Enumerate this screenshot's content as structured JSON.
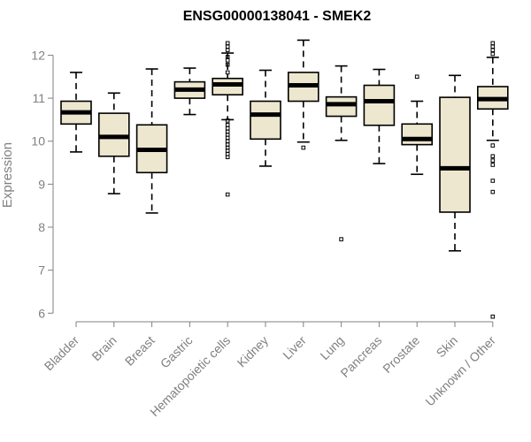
{
  "colors": {
    "box_fill": "#ede7cf",
    "stroke": "#000000",
    "axis": "#808080",
    "text": "#808080",
    "title": "#000000"
  },
  "chart_data": {
    "type": "boxplot",
    "title": "ENSG00000138041 - SMEK2",
    "xlabel": "",
    "ylabel": "Expression",
    "ylim": [
      5.8,
      12.4
    ],
    "yticks": [
      6,
      7,
      8,
      9,
      10,
      11,
      12
    ],
    "categories": [
      "Bladder",
      "Brain",
      "Breast",
      "Gastric",
      "Hematopoietic cells",
      "Kidney",
      "Liver",
      "Lung",
      "Pancreas",
      "Prostate",
      "Skin",
      "Unknown / Other"
    ],
    "series": [
      {
        "name": "Bladder",
        "whisker_low": 9.75,
        "q1": 10.4,
        "median": 10.67,
        "q3": 10.93,
        "whisker_high": 11.6,
        "outliers": []
      },
      {
        "name": "Brain",
        "whisker_low": 8.78,
        "q1": 9.65,
        "median": 10.1,
        "q3": 10.65,
        "whisker_high": 11.12,
        "outliers": []
      },
      {
        "name": "Breast",
        "whisker_low": 8.33,
        "q1": 9.27,
        "median": 9.8,
        "q3": 10.38,
        "whisker_high": 11.68,
        "outliers": []
      },
      {
        "name": "Gastric",
        "whisker_low": 10.62,
        "q1": 11.0,
        "median": 11.2,
        "q3": 11.38,
        "whisker_high": 11.7,
        "outliers": []
      },
      {
        "name": "Hematopoietic cells",
        "whisker_low": 10.5,
        "q1": 11.08,
        "median": 11.32,
        "q3": 11.46,
        "whisker_high": 12.05,
        "outliers": [
          12.28,
          12.2,
          12.12,
          11.96,
          11.88,
          11.78,
          11.6,
          10.48,
          10.38,
          10.3,
          10.22,
          10.15,
          10.08,
          10.0,
          9.92,
          9.85,
          9.78,
          9.7,
          9.63,
          8.76
        ]
      },
      {
        "name": "Kidney",
        "whisker_low": 9.42,
        "q1": 10.05,
        "median": 10.62,
        "q3": 10.93,
        "whisker_high": 11.65,
        "outliers": []
      },
      {
        "name": "Liver",
        "whisker_low": 9.98,
        "q1": 10.93,
        "median": 11.3,
        "q3": 11.6,
        "whisker_high": 12.35,
        "outliers": [
          9.85
        ]
      },
      {
        "name": "Lung",
        "whisker_low": 10.02,
        "q1": 10.58,
        "median": 10.86,
        "q3": 11.03,
        "whisker_high": 11.75,
        "outliers": [
          7.72
        ]
      },
      {
        "name": "Pancreas",
        "whisker_low": 9.48,
        "q1": 10.37,
        "median": 10.93,
        "q3": 11.3,
        "whisker_high": 11.67,
        "outliers": []
      },
      {
        "name": "Prostate",
        "whisker_low": 9.23,
        "q1": 9.92,
        "median": 10.05,
        "q3": 10.4,
        "whisker_high": 10.93,
        "outliers": [
          11.5
        ]
      },
      {
        "name": "Skin",
        "whisker_low": 7.45,
        "q1": 8.35,
        "median": 9.37,
        "q3": 11.02,
        "whisker_high": 11.53,
        "outliers": []
      },
      {
        "name": "Unknown / Other",
        "whisker_low": 10.02,
        "q1": 10.75,
        "median": 10.98,
        "q3": 11.27,
        "whisker_high": 11.95,
        "outliers": [
          12.28,
          12.2,
          12.12,
          12.03,
          9.9,
          9.65,
          9.55,
          9.45,
          9.08,
          8.82,
          5.92
        ]
      }
    ]
  }
}
